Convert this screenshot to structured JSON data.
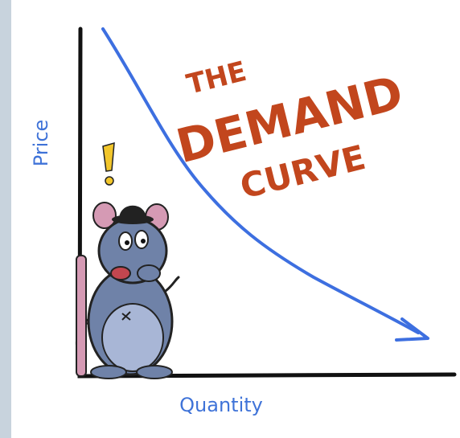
{
  "title": {
    "lines": [
      "THE",
      "DEMAND",
      "CURVE"
    ]
  },
  "axes": {
    "y_label": "Price",
    "x_label": "Quantity"
  }
}
